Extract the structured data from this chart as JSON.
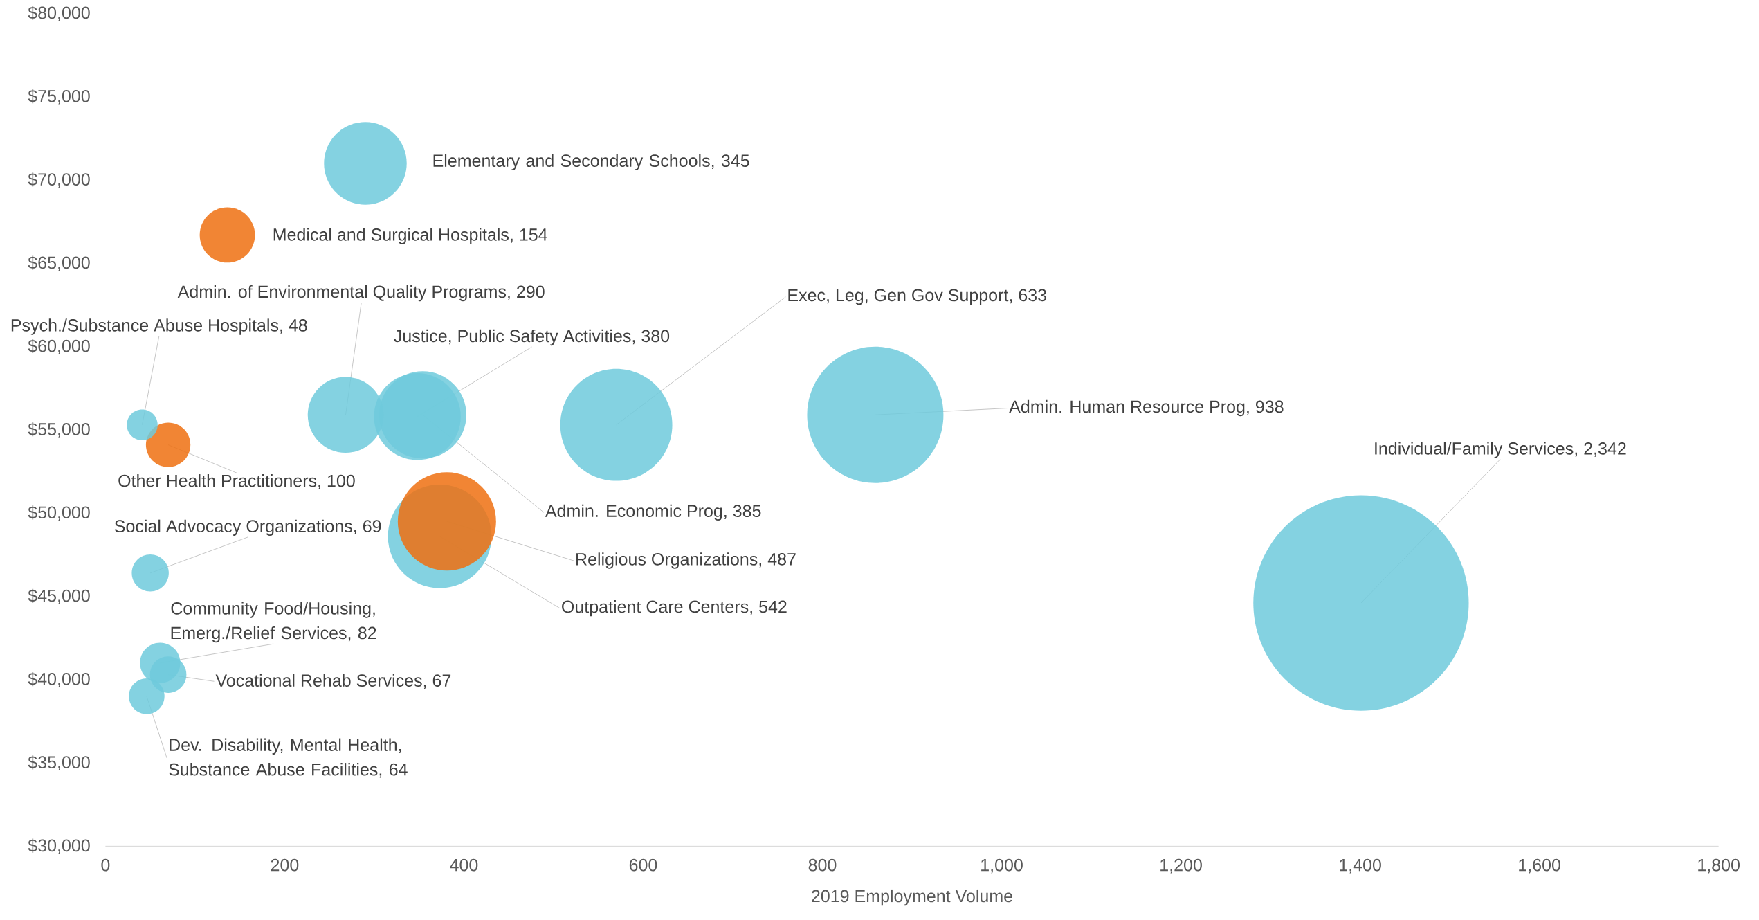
{
  "chart_data": {
    "type": "bubble",
    "xlabel": "2019 Employment Volume",
    "x": [
      290,
      136,
      268,
      41,
      348,
      354,
      570,
      859,
      1401,
      70,
      381,
      373,
      50,
      61,
      70,
      46
    ],
    "values": [
      71000,
      66700,
      55900,
      55300,
      55800,
      55900,
      55300,
      55900,
      44600,
      54100,
      49500,
      48600,
      46400,
      41000,
      40300,
      39000
    ],
    "sizes": [
      345,
      154,
      290,
      48,
      380,
      385,
      633,
      938,
      2342,
      100,
      487,
      542,
      69,
      82,
      67,
      64
    ],
    "colors": [
      "#6ecadc",
      "#ef7010",
      "#6ecadc",
      "#6ecadc",
      "#6ecadc",
      "#6ecadc",
      "#6ecadc",
      "#6ecadc",
      "#6ecadc",
      "#ef7010",
      "#ef7010",
      "#6ecadc",
      "#6ecadc",
      "#6ecadc",
      "#6ecadc",
      "#6ecadc"
    ],
    "value_labels": [
      "Elementary and Secondary Schools, 345",
      "Medical and Surgical Hospitals, 154",
      "Admin. of Environmental Quality Programs, 290",
      "Psych./Substance Abuse Hospitals, 48",
      "Justice, Public Safety Activities, 380",
      "Admin.  Economic Prog, 385",
      "Exec, Leg, Gen Gov Support, 633",
      "Admin. Human Resource Prog, 938",
      "Individual/Family Services, 2,342",
      "Other Health Practitioners, 100",
      "Religious Organizations, 487",
      "Outpatient Care Centers, 542",
      "Social Advocacy Organizations, 69",
      "Community Food/Housing, Emerg./Relief Services, 82",
      "Vocational Rehab Services, 67",
      "Dev. Disability, Mental Health, Substance Abuse Facilities, 64"
    ],
    "xlim": [
      0,
      1800
    ],
    "xticks": [
      0,
      200,
      400,
      600,
      800,
      {
        "value": 1000,
        "label": "1,000"
      },
      {
        "value": 1200,
        "label": "1,200"
      },
      {
        "value": 1400,
        "label": "1,400"
      },
      {
        "value": 1600,
        "label": "1,600"
      },
      {
        "value": 1800,
        "label": "1,800"
      }
    ],
    "ylim": [
      30000,
      80000
    ],
    "yticks": [
      {
        "value": 30000,
        "label": "$30,000"
      },
      {
        "value": 35000,
        "label": "$35,000"
      },
      {
        "value": 40000,
        "label": "$40,000"
      },
      {
        "value": 45000,
        "label": "$45,000"
      },
      {
        "value": 50000,
        "label": "$50,000"
      },
      {
        "value": 55000,
        "label": "$55,000"
      },
      {
        "value": 60000,
        "label": "$60,000"
      },
      {
        "value": 65000,
        "label": "$65,000"
      },
      {
        "value": 70000,
        "label": "$70,000"
      },
      {
        "value": 75000,
        "label": "$75,000"
      },
      {
        "value": 80000,
        "label": "$80,000"
      }
    ]
  }
}
